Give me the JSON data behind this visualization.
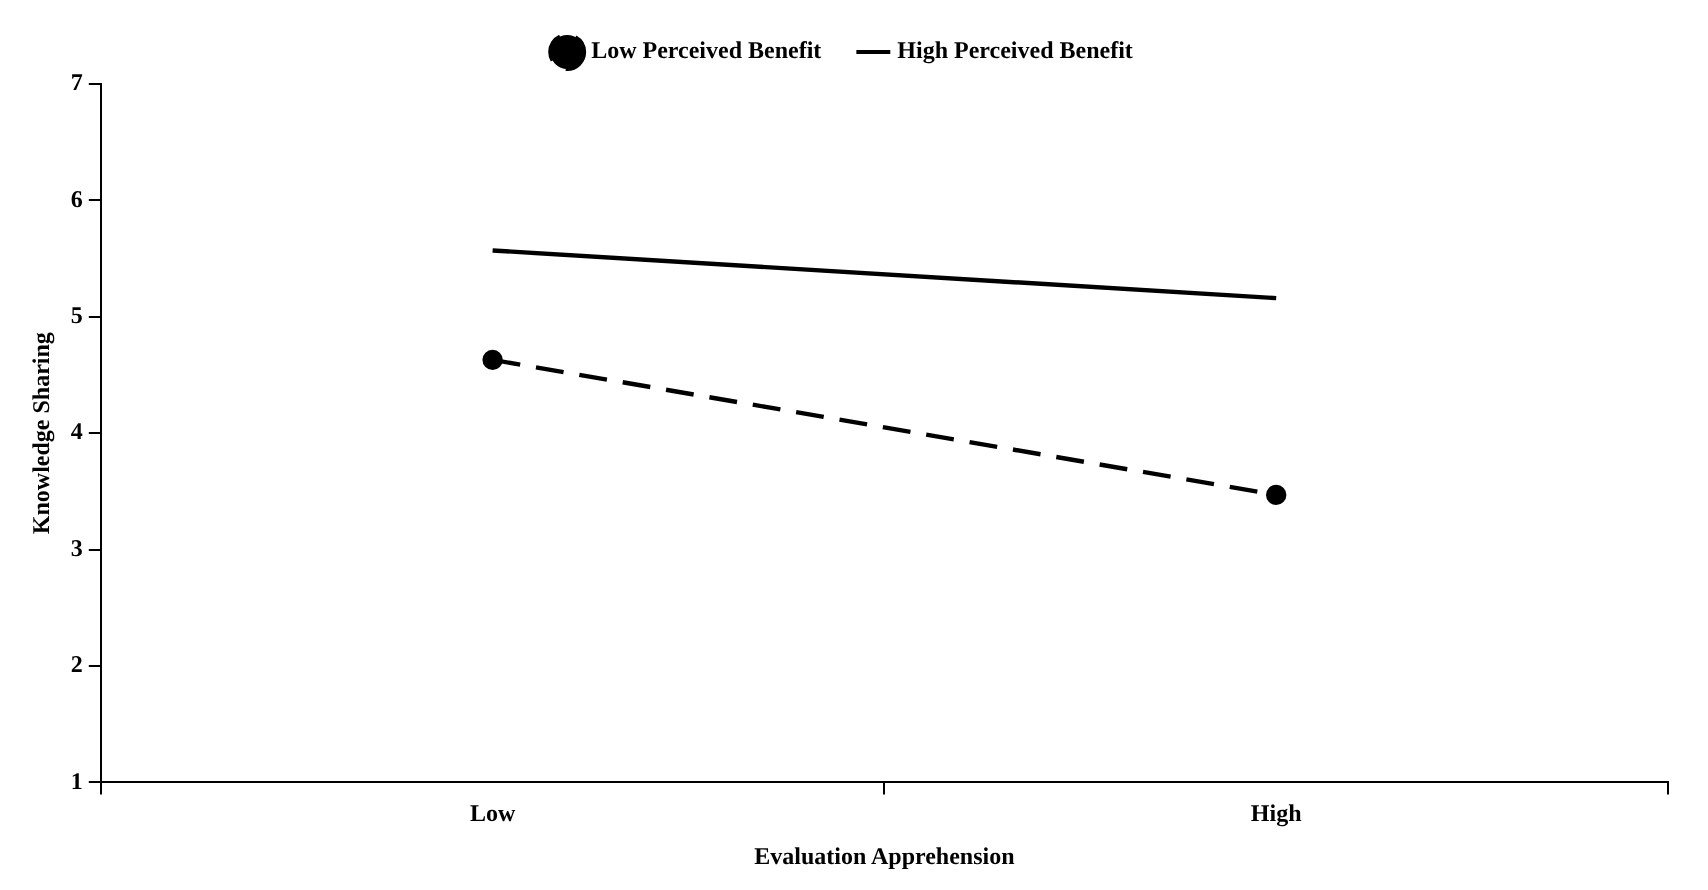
{
  "chart_data": {
    "type": "line",
    "xlabel": "Evaluation Apprehension",
    "ylabel": "Knowledge Sharing",
    "categories": [
      "Low",
      "High"
    ],
    "series": [
      {
        "name": "Low Perceived Benefit",
        "color": "#000000",
        "values": [
          4.63,
          3.47
        ],
        "line_style": "dashed",
        "marker": "circle"
      },
      {
        "name": "High Perceived Benefit",
        "color": "#000000",
        "values": [
          5.57,
          5.16
        ],
        "line_style": "solid",
        "marker": "none"
      }
    ],
    "ylim": [
      1,
      7
    ],
    "yticks": [
      1,
      2,
      3,
      4,
      5,
      6,
      7
    ],
    "grid": false,
    "legend": "top"
  }
}
